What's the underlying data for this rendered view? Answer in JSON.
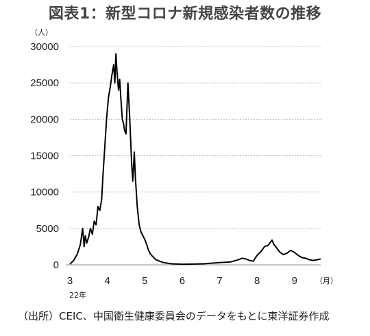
{
  "header": {
    "title": "図表1：新型コロナ新規感染者数の推移"
  },
  "footer": {
    "source": "（出所）CEIC、中国衛生健康委員会のデータをもとに東洋証券作成"
  },
  "chart_data": {
    "type": "line",
    "title": "図表1：新型コロナ新規感染者数の推移",
    "ylabel": "（人）",
    "xlabel": "（月）",
    "year_label": "22年",
    "ylim": [
      0,
      30000
    ],
    "xlim": [
      3,
      9.7
    ],
    "y_ticks": [
      0,
      5000,
      10000,
      15000,
      20000,
      25000,
      30000
    ],
    "x_ticks": [
      3,
      4,
      5,
      6,
      7,
      8,
      9
    ],
    "grid": "horizontal dotted",
    "line_color": "#000000",
    "series": [
      {
        "x": [
          3.0,
          3.1,
          3.2,
          3.28,
          3.34,
          3.38,
          3.41,
          3.45,
          3.5,
          3.55,
          3.6,
          3.65,
          3.7,
          3.75,
          3.8,
          3.85,
          3.88,
          3.93,
          3.98,
          4.03,
          4.08,
          4.12,
          4.17,
          4.2,
          4.23,
          4.26,
          4.3,
          4.33,
          4.36,
          4.4,
          4.43,
          4.46,
          4.5,
          4.55,
          4.6,
          4.65,
          4.68,
          4.72,
          4.75,
          4.8,
          4.85,
          4.9,
          4.95,
          5.0,
          5.05,
          5.1,
          5.15,
          5.2,
          5.3,
          5.4,
          5.5,
          5.7,
          5.9,
          6.0,
          6.3,
          6.6,
          7.0,
          7.3,
          7.5,
          7.6,
          7.7,
          7.8,
          7.9,
          8.0,
          8.1,
          8.2,
          8.3,
          8.4,
          8.45,
          8.5,
          8.6,
          8.7,
          8.8,
          8.9,
          9.0,
          9.1,
          9.2,
          9.3,
          9.4,
          9.5,
          9.6,
          9.7
        ],
        "values": [
          100,
          600,
          1500,
          2800,
          5000,
          2500,
          4000,
          3000,
          3800,
          5000,
          4200,
          6000,
          5500,
          8000,
          7500,
          9000,
          12000,
          16000,
          20000,
          23000,
          24500,
          26000,
          27500,
          25000,
          29000,
          26500,
          24000,
          25500,
          23000,
          20000,
          19500,
          18500,
          18000,
          25000,
          20000,
          14000,
          11500,
          15500,
          12000,
          8000,
          5500,
          4500,
          4000,
          3500,
          2800,
          2000,
          1500,
          1200,
          700,
          500,
          300,
          150,
          100,
          80,
          100,
          150,
          300,
          400,
          700,
          900,
          800,
          600,
          500,
          1300,
          1800,
          2500,
          2700,
          3400,
          2800,
          2500,
          1800,
          1400,
          1600,
          2000,
          1700,
          1300,
          1000,
          900,
          700,
          600,
          700,
          800
        ]
      }
    ]
  }
}
